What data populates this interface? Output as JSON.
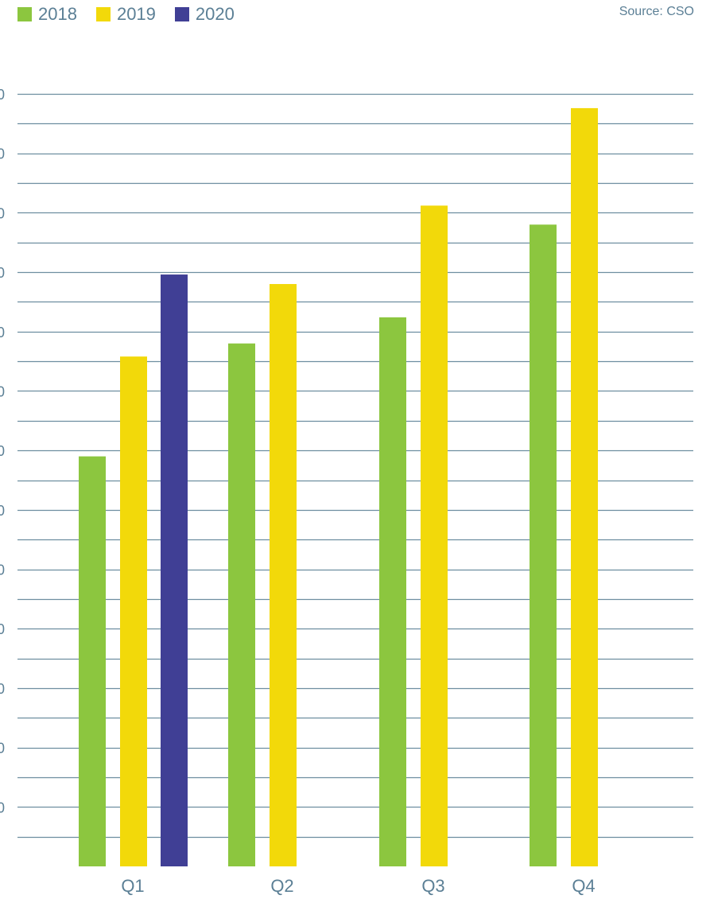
{
  "source_note": "Source: CSO",
  "chart_data": {
    "type": "bar",
    "categories": [
      "Q1",
      "Q2",
      "Q3",
      "Q4"
    ],
    "series": [
      {
        "name": "2018",
        "color": "#8cc63f",
        "values": [
          69,
          88,
          92.4,
          108
        ]
      },
      {
        "name": "2019",
        "color": "#f2d90a",
        "values": [
          85.8,
          98,
          111.2,
          127.6
        ]
      },
      {
        "name": "2020",
        "color": "#403f95",
        "values": [
          99.6,
          null,
          null,
          null
        ]
      }
    ],
    "ylim": [
      0,
      130
    ],
    "yticks_step": 10,
    "grid": true,
    "legend": "top-left",
    "title": "",
    "xlabel": "",
    "ylabel": ""
  }
}
